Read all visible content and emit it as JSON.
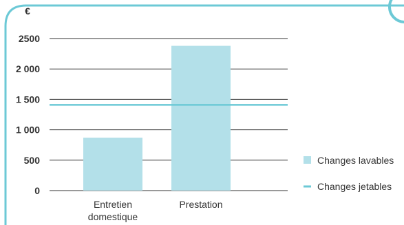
{
  "colors": {
    "bar": "#b3e0e9",
    "line": "#6cc9d6",
    "frame": "#6cc9d6",
    "grid": "#333333",
    "text": "#333333"
  },
  "chart_data": {
    "type": "bar",
    "ylabel": "€",
    "categories": [
      [
        "Entretien",
        "domestique"
      ],
      [
        "Prestation"
      ]
    ],
    "series": [
      {
        "name": "Changes lavables",
        "type": "bar",
        "values": [
          870,
          2380
        ]
      }
    ],
    "reference_lines": [
      {
        "name": "Changes jetables",
        "value": 1410
      }
    ],
    "ylim": [
      0,
      2500
    ],
    "yticks": [
      {
        "value": 0,
        "label": "0"
      },
      {
        "value": 500,
        "label": "500"
      },
      {
        "value": 1000,
        "label": "1 000"
      },
      {
        "value": 1500,
        "label": "1 500"
      },
      {
        "value": 2000,
        "label": "2 000"
      },
      {
        "value": 2500,
        "label": "2500"
      }
    ],
    "grid": true,
    "legend_position": "right"
  }
}
